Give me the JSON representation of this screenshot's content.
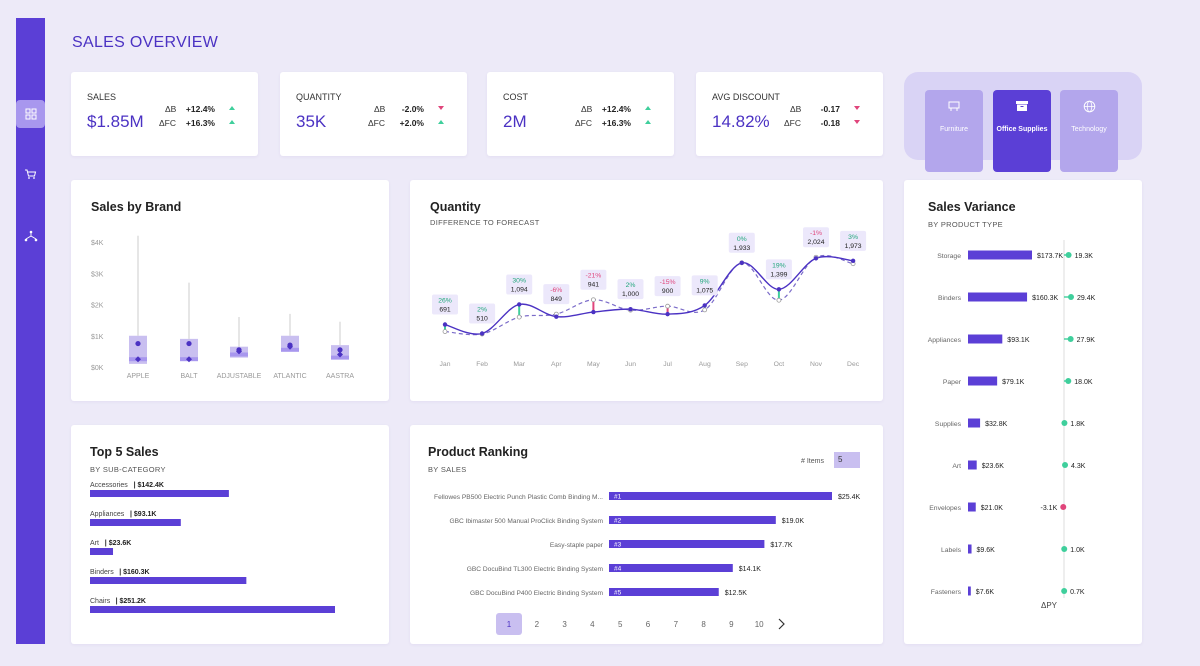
{
  "page_title": "SALES OVERVIEW",
  "sidebar": {
    "items": [
      {
        "icon": "grid-icon"
      },
      {
        "icon": "cart-icon"
      },
      {
        "icon": "hierarchy-icon"
      }
    ]
  },
  "kpis": [
    {
      "label": "SALES",
      "value": "$1.85M",
      "d1_label": "ΔB",
      "d1_value": "+12.4%",
      "d1_dir": "up",
      "d2_label": "ΔFC",
      "d2_value": "+16.3%",
      "d2_dir": "up"
    },
    {
      "label": "QUANTITY",
      "value": "35K",
      "d1_label": "ΔB",
      "d1_value": "-2.0%",
      "d1_dir": "down",
      "d2_label": "ΔFC",
      "d2_value": "+2.0%",
      "d2_dir": "up"
    },
    {
      "label": "COST",
      "value": "2M",
      "d1_label": "ΔB",
      "d1_value": "+12.4%",
      "d1_dir": "up",
      "d2_label": "ΔFC",
      "d2_value": "+16.3%",
      "d2_dir": "up"
    },
    {
      "label": "AVG DISCOUNT",
      "value": "14.82%",
      "d1_label": "ΔB",
      "d1_value": "-0.17",
      "d1_dir": "down",
      "d2_label": "ΔFC",
      "d2_value": "-0.18",
      "d2_dir": "down"
    }
  ],
  "categories": [
    {
      "label": "Furniture",
      "icon": "furniture-icon",
      "selected": false
    },
    {
      "label": "Office Supplies",
      "icon": "archive-box-icon",
      "selected": true
    },
    {
      "label": "Technology",
      "icon": "globe-icon",
      "selected": false
    }
  ],
  "colors": {
    "accent": "#5b3fd6",
    "positive": "#3fcf9c",
    "negative": "#e0457b",
    "light": "#c9bff0"
  },
  "sales_by_brand": {
    "title": "Sales by Brand",
    "chart_data": {
      "type": "boxplot",
      "y_ticks": [
        "$0K",
        "$1K",
        "$2K",
        "$3K",
        "$4K"
      ],
      "ylim": [
        0,
        4000
      ],
      "categories": [
        "APPLE",
        "BALT",
        "ADJUSTABLE",
        "ATLANTIC",
        "AASTRA"
      ],
      "whisker_max": [
        4200,
        2700,
        1600,
        1700,
        1450
      ],
      "q3": [
        1000,
        900,
        650,
        1000,
        700
      ],
      "median": [
        250,
        250,
        400,
        550,
        300
      ],
      "q1": [
        100,
        250,
        300,
        500,
        250
      ],
      "mean": [
        750,
        750,
        550,
        700,
        550
      ],
      "whisker_min": [
        80,
        200,
        250,
        450,
        200
      ],
      "min_point": [
        250,
        250,
        500,
        650,
        400
      ]
    }
  },
  "quantity": {
    "title": "Quantity",
    "subtitle": "DIFFERENCE TO FORECAST",
    "chart_data": {
      "type": "line",
      "categories": [
        "Jan",
        "Feb",
        "Mar",
        "Apr",
        "May",
        "Jun",
        "Jul",
        "Aug",
        "Sep",
        "Oct",
        "Nov",
        "Dec"
      ],
      "series": [
        {
          "values": [
            691,
            510,
            1094,
            849,
            941,
            1000,
            900,
            1075,
            1933,
            1399,
            2024,
            1973
          ]
        },
        {
          "values": [
            550,
            500,
            840,
            900,
            1190,
            980,
            1060,
            985,
            1933,
            1180,
            2045,
            1915
          ]
        }
      ],
      "labels": [
        "26%",
        "2%",
        "30%",
        "-6%",
        "-21%",
        "2%",
        "-15%",
        "9%",
        "0%",
        "19%",
        "-1%",
        "3%"
      ],
      "label_positive": [
        true,
        true,
        true,
        false,
        false,
        true,
        false,
        true,
        true,
        true,
        false,
        true
      ],
      "value_labels": [
        "691",
        "510",
        "1,094",
        "849",
        "941",
        "1,000",
        "900",
        "1,075",
        "1,933",
        "1,399",
        "2,024",
        "1,973"
      ]
    }
  },
  "sales_variance": {
    "title": "Sales Variance",
    "subtitle": "BY PRODUCT TYPE",
    "footer": "ΔPY",
    "chart_data": {
      "type": "bar",
      "categories": [
        "Storage",
        "Binders",
        "Appliances",
        "Paper",
        "Supplies",
        "Art",
        "Envelopes",
        "Labels",
        "Fasteners"
      ],
      "values": [
        173.7,
        160.3,
        93.1,
        79.1,
        32.8,
        23.6,
        21.0,
        9.6,
        7.6
      ],
      "value_labels": [
        "$173.7K",
        "$160.3K",
        "$93.1K",
        "$79.1K",
        "$32.8K",
        "$23.6K",
        "$21.0K",
        "$9.6K",
        "$7.6K"
      ],
      "delta": [
        19.3,
        29.4,
        27.9,
        18.0,
        1.8,
        4.3,
        -3.1,
        1.0,
        0.7
      ],
      "delta_labels": [
        "19.3K",
        "29.4K",
        "27.9K",
        "18.0K",
        "1.8K",
        "4.3K",
        "-3.1K",
        "1.0K",
        "0.7K"
      ]
    }
  },
  "top5": {
    "title": "Top 5 Sales",
    "subtitle": "BY SUB-CATEGORY",
    "chart_data": {
      "type": "bar",
      "categories": [
        "Accessories",
        "Appliances",
        "Art",
        "Binders",
        "Chairs"
      ],
      "values": [
        142.4,
        93.1,
        23.6,
        160.3,
        251.2
      ],
      "value_labels": [
        "| $142.4K",
        "| $93.1K",
        "| $23.6K",
        "| $160.3K",
        "| $251.2K"
      ]
    }
  },
  "ranking": {
    "title": "Product Ranking",
    "subtitle": "BY SALES",
    "items_label": "# Items",
    "items_value": "5",
    "chart_data": {
      "type": "bar",
      "categories": [
        "Fellowes PB500 Electric Punch Plastic Comb Binding M...",
        "GBC Ibimaster 500 Manual ProClick Binding System",
        "Easy-staple paper",
        "GBC DocuBind TL300 Electric Binding System",
        "GBC DocuBind P400 Electric Binding System"
      ],
      "ranks": [
        "#1",
        "#2",
        "#3",
        "#4",
        "#5"
      ],
      "values": [
        25.4,
        19.0,
        17.7,
        14.1,
        12.5
      ],
      "value_labels": [
        "$25.4K",
        "$19.0K",
        "$17.7K",
        "$14.1K",
        "$12.5K"
      ]
    },
    "pages": [
      "1",
      "2",
      "3",
      "4",
      "5",
      "6",
      "7",
      "8",
      "9",
      "10"
    ],
    "active_page": 0
  }
}
